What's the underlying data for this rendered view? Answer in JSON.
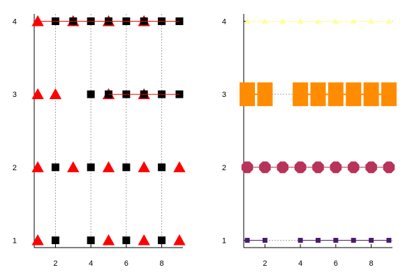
{
  "chart_data": [
    {
      "type": "scatter",
      "xlim": [
        0.8,
        9.2
      ],
      "ylim": [
        0.9,
        4.1
      ],
      "x_ticks": [
        2,
        4,
        6,
        8
      ],
      "y_ticks": [
        1,
        2,
        3,
        4
      ],
      "grid": "x-dashed",
      "legend": "none",
      "series": [
        {
          "marker": "triangle",
          "color": "#ff0000",
          "connected": false,
          "points": [
            [
              1,
              4
            ],
            [
              3,
              4
            ],
            [
              5,
              4
            ],
            [
              7,
              4
            ],
            [
              1,
              3
            ],
            [
              2,
              3
            ],
            [
              5,
              3
            ],
            [
              7,
              3
            ],
            [
              1,
              2
            ],
            [
              3,
              2
            ],
            [
              5,
              2
            ],
            [
              7,
              2
            ],
            [
              9,
              2
            ],
            [
              1,
              1
            ],
            [
              5,
              1
            ],
            [
              7,
              1
            ],
            [
              9,
              1
            ]
          ]
        },
        {
          "marker": "square",
          "color": "#000000",
          "connected": false,
          "points": [
            [
              2,
              4
            ],
            [
              3,
              4
            ],
            [
              4,
              4
            ],
            [
              5,
              4
            ],
            [
              6,
              4
            ],
            [
              7,
              4
            ],
            [
              8,
              4
            ],
            [
              9,
              4
            ],
            [
              4,
              3
            ],
            [
              5,
              3
            ],
            [
              6,
              3
            ],
            [
              7,
              3
            ],
            [
              8,
              3
            ],
            [
              9,
              3
            ],
            [
              2,
              2
            ],
            [
              4,
              2
            ],
            [
              6,
              2
            ],
            [
              8,
              2
            ],
            [
              2,
              1
            ],
            [
              4,
              1
            ],
            [
              6,
              1
            ],
            [
              8,
              1
            ]
          ]
        },
        {
          "marker": "none",
          "color": "#ff0000",
          "connected": true,
          "segments": [
            [
              [
                1,
                4
              ],
              [
                9,
                4
              ]
            ],
            [
              [
                5,
                3
              ],
              [
                9,
                3
              ]
            ]
          ]
        }
      ]
    },
    {
      "type": "line",
      "xlim": [
        0.8,
        9.2
      ],
      "ylim": [
        0.9,
        4.1
      ],
      "x_ticks": [
        2,
        4,
        6,
        8
      ],
      "y_ticks": [
        1,
        2,
        3,
        4
      ],
      "grid": "y-dashed",
      "legend": "none",
      "series": [
        {
          "marker": "square",
          "color": "#4b1a6e",
          "marker_size": "small",
          "segments": [
            [
              [
                1,
                1
              ],
              [
                2,
                1
              ]
            ],
            [
              [
                4,
                1
              ],
              [
                5,
                1
              ],
              [
                6,
                1
              ],
              [
                7,
                1
              ],
              [
                8,
                1
              ],
              [
                9,
                1
              ]
            ]
          ]
        },
        {
          "marker": "octagon",
          "color": "#b8325a",
          "marker_size": "medium",
          "segments": [
            [
              [
                1,
                2
              ],
              [
                2,
                2
              ],
              [
                3,
                2
              ],
              [
                4,
                2
              ],
              [
                5,
                2
              ],
              [
                6,
                2
              ],
              [
                7,
                2
              ],
              [
                8,
                2
              ],
              [
                9,
                2
              ]
            ]
          ]
        },
        {
          "marker": "square",
          "color": "#ff8c00",
          "marker_size": "large",
          "segments": [
            [
              [
                1,
                3
              ],
              [
                2,
                3
              ]
            ],
            [
              [
                4,
                3
              ],
              [
                5,
                3
              ],
              [
                6,
                3
              ],
              [
                7,
                3
              ],
              [
                8,
                3
              ],
              [
                9,
                3
              ]
            ]
          ]
        },
        {
          "marker": "triangle",
          "color": "#ffff99",
          "marker_size": "small",
          "segments": [
            [
              [
                1,
                4
              ],
              [
                2,
                4
              ],
              [
                3,
                4
              ],
              [
                4,
                4
              ],
              [
                5,
                4
              ],
              [
                6,
                4
              ],
              [
                7,
                4
              ],
              [
                8,
                4
              ],
              [
                9,
                4
              ]
            ]
          ]
        }
      ]
    }
  ]
}
